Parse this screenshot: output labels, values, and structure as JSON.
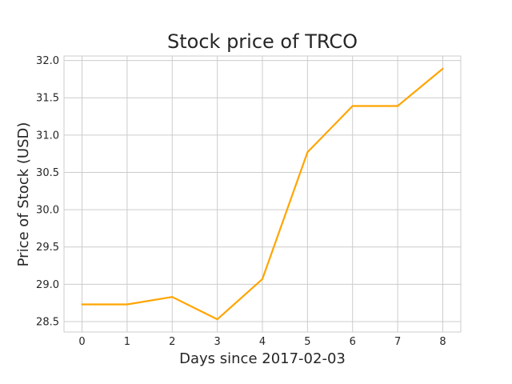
{
  "chart_data": {
    "type": "line",
    "title": "Stock price of TRCO",
    "xlabel": "Days since 2017-02-03",
    "ylabel": "Price of Stock (USD)",
    "x": [
      0,
      1,
      2,
      3,
      4,
      5,
      6,
      7,
      8
    ],
    "series": [
      {
        "values": [
          28.73,
          28.73,
          28.83,
          28.53,
          29.07,
          30.77,
          31.39,
          31.39,
          31.89
        ],
        "color": "#ffa500"
      }
    ],
    "x_ticks": [
      "0",
      "1",
      "2",
      "3",
      "4",
      "5",
      "6",
      "7",
      "8"
    ],
    "y_ticks": [
      "28.5",
      "29.0",
      "29.5",
      "30.0",
      "30.5",
      "31.0",
      "31.5",
      "32.0"
    ],
    "xlim": [
      -0.4,
      8.4
    ],
    "ylim": [
      28.36,
      32.06
    ],
    "grid": true,
    "legend": false
  }
}
